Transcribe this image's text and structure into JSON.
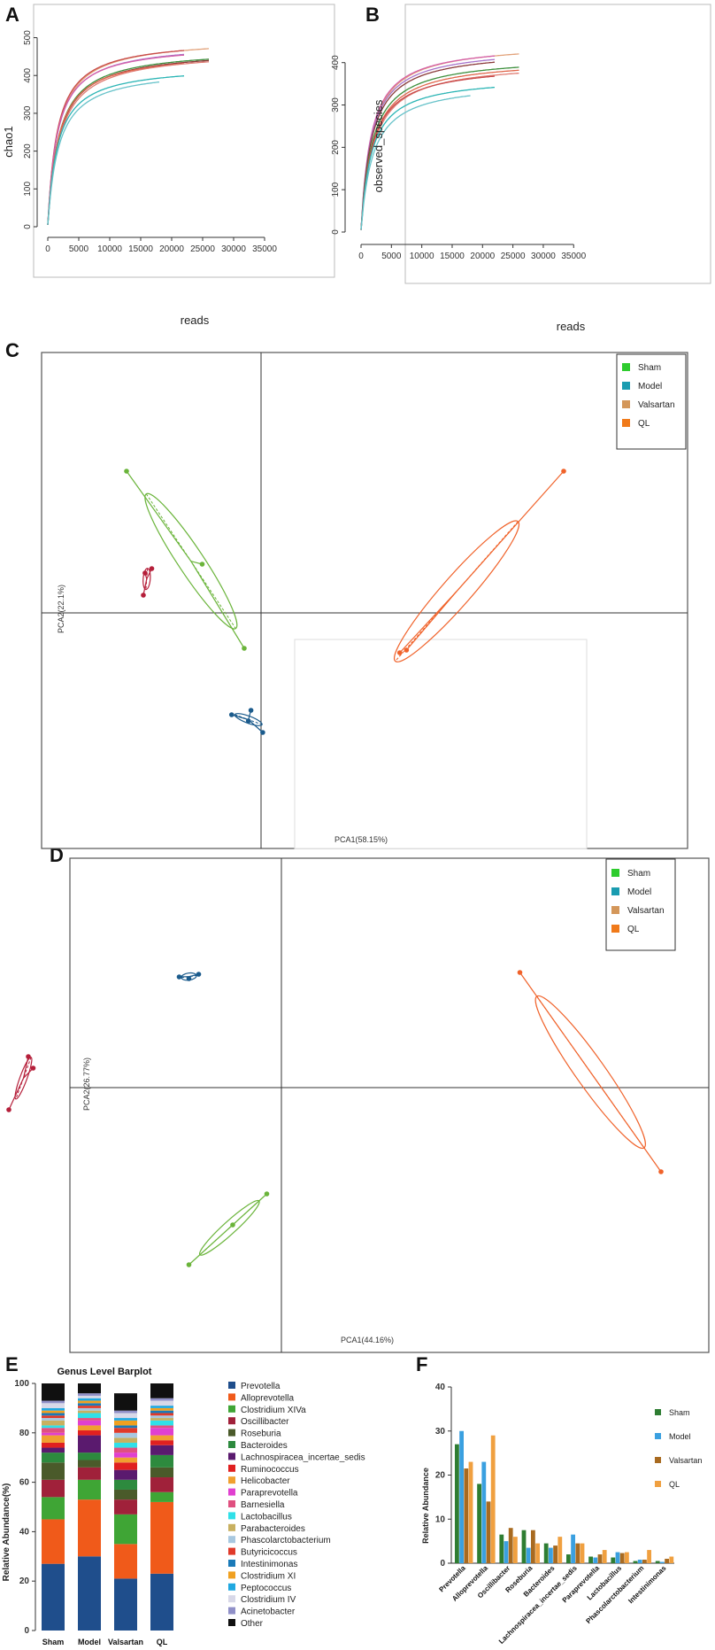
{
  "panels": {
    "A": {
      "letter": "A",
      "chart_data": {
        "type": "line",
        "xlabel": "reads",
        "ylabel": "chao1",
        "xlim": [
          0,
          37000
        ],
        "ylim": [
          0,
          520
        ],
        "xticks": [
          0,
          5000,
          10000,
          15000,
          20000,
          25000,
          30000,
          35000
        ],
        "yticks": [
          0,
          100,
          200,
          300,
          400,
          500
        ],
        "series": [
          {
            "color": "#e2a27a",
            "max_x": 26000,
            "asym": 500,
            "k": 1600
          },
          {
            "color": "#c84b4b",
            "max_x": 22000,
            "asym": 498,
            "k": 1500
          },
          {
            "color": "#a673c9",
            "max_x": 22000,
            "asym": 488,
            "k": 1550
          },
          {
            "color": "#d45fa8",
            "max_x": 22000,
            "asym": 485,
            "k": 1500
          },
          {
            "color": "#3d8f3d",
            "max_x": 26000,
            "asym": 473,
            "k": 1750
          },
          {
            "color": "#8b3a3a",
            "max_x": 26000,
            "asym": 470,
            "k": 1800
          },
          {
            "color": "#e0654a",
            "max_x": 22000,
            "asym": 465,
            "k": 1700
          },
          {
            "color": "#e07b72",
            "max_x": 26000,
            "asym": 468,
            "k": 1900
          },
          {
            "color": "#2bb5b5",
            "max_x": 22000,
            "asym": 428,
            "k": 1600
          },
          {
            "color": "#66c2c9",
            "max_x": 18000,
            "asym": 420,
            "k": 1750
          }
        ]
      }
    },
    "B": {
      "letter": "B",
      "chart_data": {
        "type": "line",
        "xlabel": "reads",
        "ylabel": "observed_species",
        "xlim": [
          0,
          37000
        ],
        "ylim": [
          0,
          460
        ],
        "xticks": [
          0,
          5000,
          10000,
          15000,
          20000,
          25000,
          30000,
          35000
        ],
        "yticks": [
          0,
          100,
          200,
          300,
          400
        ],
        "series": [
          {
            "color": "#e2a27a",
            "max_x": 26000,
            "asym": 448,
            "k": 1700
          },
          {
            "color": "#d45fa8",
            "max_x": 22000,
            "asym": 446,
            "k": 1600
          },
          {
            "color": "#a673c9",
            "max_x": 22000,
            "asym": 438,
            "k": 1650
          },
          {
            "color": "#8b3a3a",
            "max_x": 22000,
            "asym": 432,
            "k": 1700
          },
          {
            "color": "#3d8f3d",
            "max_x": 26000,
            "asym": 416,
            "k": 1800
          },
          {
            "color": "#e0654a",
            "max_x": 26000,
            "asym": 410,
            "k": 1900
          },
          {
            "color": "#e07b72",
            "max_x": 26000,
            "asym": 404,
            "k": 2000
          },
          {
            "color": "#c84b4b",
            "max_x": 22000,
            "asym": 398,
            "k": 1800
          },
          {
            "color": "#2bb5b5",
            "max_x": 22000,
            "asym": 368,
            "k": 1700
          },
          {
            "color": "#66c2c9",
            "max_x": 18000,
            "asym": 356,
            "k": 1900
          }
        ]
      }
    },
    "C": {
      "letter": "C",
      "chart_data": {
        "type": "scatter",
        "xlabel": "PCA1(58.15%)",
        "ylabel": "PCA2(22.1%)",
        "legend": [
          "Sham",
          "Model",
          "Valsartan",
          "QL"
        ],
        "legend_colors": [
          "#2ecc2e",
          "#1a9cb0",
          "#d4975a",
          "#f07a1a"
        ],
        "groups": [
          {
            "name": "Sham",
            "color": "#6ab43a",
            "points": [
              [
                -1.6,
                1.6
              ],
              [
                -0.7,
                0.55
              ],
              [
                -0.2,
                -0.4
              ]
            ]
          },
          {
            "name": "Model",
            "color": "#1b5b8c",
            "points": [
              [
                -0.35,
                -1.15
              ],
              [
                -0.12,
                -1.1
              ],
              [
                0.02,
                -1.35
              ],
              [
                -0.15,
                -1.22
              ]
            ]
          },
          {
            "name": "Valsartan",
            "color": "#b51f3a",
            "points": [
              [
                -1.38,
                0.45
              ],
              [
                -1.3,
                0.5
              ],
              [
                -1.4,
                0.2
              ]
            ]
          },
          {
            "name": "QL",
            "color": "#f0622a",
            "points": [
              [
                3.6,
                1.6
              ],
              [
                1.65,
                -0.45
              ],
              [
                1.73,
                -0.42
              ]
            ]
          }
        ]
      }
    },
    "D": {
      "letter": "D",
      "chart_data": {
        "type": "scatter",
        "xlabel": "PCA1(44.16%)",
        "ylabel": "PCA2(26.77%)",
        "legend": [
          "Sham",
          "Model",
          "Valsartan",
          "QL"
        ],
        "legend_colors": [
          "#2ecc2e",
          "#1a9cb0",
          "#d4975a",
          "#f07a1a"
        ],
        "groups": [
          {
            "name": "Sham",
            "color": "#6ab43a",
            "points": [
              [
                -0.15,
                -1.2
              ],
              [
                -0.95,
                -2.0
              ],
              [
                -0.5,
                -1.55
              ]
            ]
          },
          {
            "name": "Model",
            "color": "#1b5b8c",
            "points": [
              [
                -1.05,
                1.25
              ],
              [
                -0.95,
                1.23
              ],
              [
                -0.85,
                1.28
              ]
            ]
          },
          {
            "name": "Valsartan",
            "color": "#b51f3a",
            "points": [
              [
                -2.6,
                0.35
              ],
              [
                -2.55,
                0.22
              ],
              [
                -2.8,
                -0.25
              ]
            ]
          },
          {
            "name": "QL",
            "color": "#f0622a",
            "points": [
              [
                2.45,
                1.3
              ],
              [
                3.9,
                -0.95
              ]
            ]
          }
        ]
      }
    },
    "E": {
      "letter": "E",
      "chart_data": {
        "type": "bar",
        "stacked": true,
        "title": "Genus Level Barplot",
        "ylabel": "Relative Abundance(%)",
        "ylim": [
          0,
          100
        ],
        "yticks": [
          0,
          20,
          40,
          60,
          80,
          100
        ],
        "categories": [
          "Sham",
          "Model",
          "Valsartan",
          "QL"
        ],
        "series": [
          {
            "name": "Prevotella",
            "color": "#1f4e8c",
            "values": [
              27,
              30,
              21,
              23
            ]
          },
          {
            "name": "Alloprevotella",
            "color": "#f05a1a",
            "values": [
              18,
              23,
              14,
              29
            ]
          },
          {
            "name": "Clostridium XIVa",
            "color": "#3fa535",
            "values": [
              9,
              8,
              12,
              4
            ]
          },
          {
            "name": "Oscillibacter",
            "color": "#a0213a",
            "values": [
              7,
              5,
              6,
              6
            ]
          },
          {
            "name": "Roseburia",
            "color": "#4a5a2a",
            "values": [
              7,
              3,
              4,
              4
            ]
          },
          {
            "name": "Bacteroides",
            "color": "#2d8a3e",
            "values": [
              4,
              3,
              4,
              5
            ]
          },
          {
            "name": "Lachnospiracea_incertae_sedis",
            "color": "#5a1a6e",
            "values": [
              2,
              7,
              4,
              4
            ]
          },
          {
            "name": "Ruminococcus",
            "color": "#e02020",
            "values": [
              2,
              2,
              3,
              2
            ]
          },
          {
            "name": "Helicobacter",
            "color": "#f0a030",
            "values": [
              3,
              2,
              2,
              2
            ]
          },
          {
            "name": "Paraprevotella",
            "color": "#e040d0",
            "values": [
              1,
              2,
              2,
              3
            ]
          },
          {
            "name": "Barnesiella",
            "color": "#e05080",
            "values": [
              2,
              1,
              2,
              1
            ]
          },
          {
            "name": "Lactobacillus",
            "color": "#30e0e8",
            "values": [
              1,
              2,
              2,
              2
            ]
          },
          {
            "name": "Parabacteroides",
            "color": "#c8b060",
            "values": [
              2,
              1,
              2,
              1
            ]
          },
          {
            "name": "Phascolarctobacterium",
            "color": "#a8c8e0",
            "values": [
              1,
              1,
              2,
              1
            ]
          },
          {
            "name": "Butyricicoccus",
            "color": "#e03a2a",
            "values": [
              1,
              1,
              2,
              1
            ]
          },
          {
            "name": "Intestinimonas",
            "color": "#1a7ab8",
            "values": [
              1,
              1,
              1,
              1
            ]
          },
          {
            "name": "Clostridium XI",
            "color": "#f0a020",
            "values": [
              1,
              1,
              2,
              1
            ]
          },
          {
            "name": "Peptococcus",
            "color": "#20a8e0",
            "values": [
              1,
              1,
              1,
              1
            ]
          },
          {
            "name": "Clostridium IV",
            "color": "#d8d8e8",
            "values": [
              2,
              1,
              2,
              2
            ]
          },
          {
            "name": "Acinetobacter",
            "color": "#9090c8",
            "values": [
              1,
              1,
              1,
              1
            ]
          },
          {
            "name": "Other",
            "color": "#101010",
            "values": [
              7,
              4,
              7,
              6
            ]
          }
        ]
      }
    },
    "F": {
      "letter": "F",
      "chart_data": {
        "type": "bar",
        "ylabel": "Relative Abundance",
        "ylim": [
          0,
          40
        ],
        "yticks": [
          0,
          10,
          20,
          30,
          40
        ],
        "legend": [
          "Sham",
          "Model",
          "Valsartan",
          "QL"
        ],
        "categories": [
          "Prevotella",
          "Alloprevotella",
          "Oscillibacter",
          "Roseburia",
          "Bacteroides",
          "Lachnospiracea_incertae_sedis",
          "Paraprevotella",
          "Lactobacillus",
          "Phascolarctobacterium",
          "Intestinimonas"
        ],
        "series": [
          {
            "name": "Sham",
            "color": "#2e7d32",
            "values": [
              27,
              18,
              6.5,
              7.5,
              4.5,
              2,
              1.5,
              1.3,
              0.5,
              0.5
            ]
          },
          {
            "name": "Model",
            "color": "#3aa0e0",
            "values": [
              30,
              23,
              5,
              3.5,
              3.5,
              6.5,
              1.3,
              2.5,
              0.8,
              0.3
            ]
          },
          {
            "name": "Valsartan",
            "color": "#a86a20",
            "values": [
              21.5,
              14,
              8,
              7.5,
              4,
              4.5,
              2,
              2.3,
              0.8,
              1
            ]
          },
          {
            "name": "QL",
            "color": "#f0a040",
            "values": [
              23,
              29,
              6,
              4.5,
              6,
              4.5,
              3,
              2.5,
              3,
              1.5
            ]
          }
        ]
      }
    }
  }
}
